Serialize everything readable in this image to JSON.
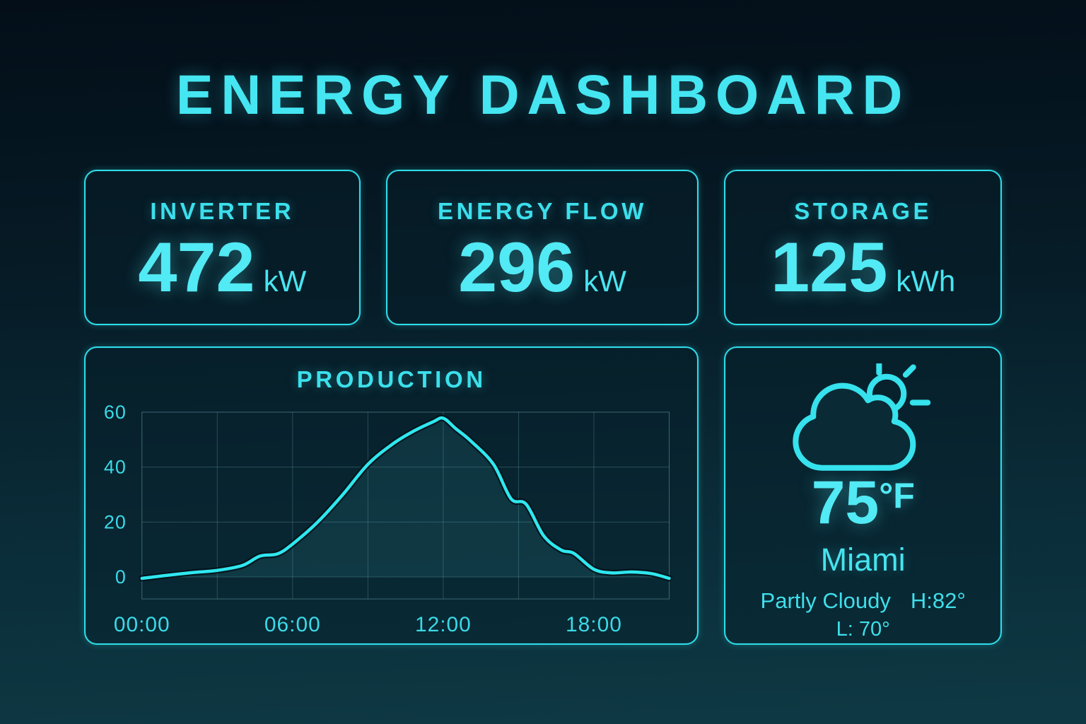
{
  "title": "ENERGY DASHBOARD",
  "accent_color": "#3fe3ee",
  "value_color": "#52eaf4",
  "stats": [
    {
      "label": "INVERTER",
      "value": "472",
      "unit": "kW"
    },
    {
      "label": "ENERGY FLOW",
      "value": "296",
      "unit": "kW"
    },
    {
      "label": "STORAGE",
      "value": "125",
      "unit": "kWh"
    }
  ],
  "production": {
    "title": "PRODUCTION"
  },
  "chart_data": {
    "type": "area",
    "title": "PRODUCTION",
    "x_unit": "time of day (hours)",
    "xlim": [
      0,
      21
    ],
    "ylim": [
      -8,
      60
    ],
    "grid": true,
    "legend": "none",
    "x_hours": [
      0,
      1,
      2,
      3,
      4,
      4.7,
      5.4,
      6,
      7,
      8,
      9,
      10,
      10.8,
      11.6,
      12,
      12.5,
      13.1,
      14,
      14.7,
      15.3,
      16,
      16.7,
      17.2,
      18,
      18.7,
      19.5,
      20.3,
      21
    ],
    "values": [
      -0.5,
      0.6,
      1.6,
      2.4,
      4.2,
      7.6,
      8.4,
      12,
      20,
      30,
      41,
      48.5,
      53,
      56.5,
      57.8,
      54,
      49.5,
      41,
      28.5,
      26.5,
      15,
      9.8,
      8.6,
      2.8,
      1.5,
      1.8,
      1.2,
      -0.5
    ],
    "x_ticks": [
      {
        "pos": 0,
        "label": "00:00"
      },
      {
        "pos": 6,
        "label": "06:00"
      },
      {
        "pos": 12,
        "label": "12:00"
      },
      {
        "pos": 18,
        "label": "18:00"
      }
    ],
    "y_ticks": [
      0,
      20,
      40,
      60
    ],
    "x_gridlines": [
      0,
      3,
      6,
      9,
      12,
      15,
      18,
      21
    ],
    "line_color": "#2fe7ef",
    "halo_color": "#031219",
    "fill_color": "rgba(74,212,224,0.10)",
    "grid_color": "rgba(124,186,200,0.28)",
    "border_color": "rgba(124,186,200,0.45)",
    "tick_color": "#3bd9e6"
  },
  "weather": {
    "icon": "partly-cloudy",
    "temp_value": "75",
    "temp_unit": "°F",
    "city": "Miami",
    "condition": "Partly Cloudy",
    "high": "H:82°",
    "low": "L: 70°"
  }
}
